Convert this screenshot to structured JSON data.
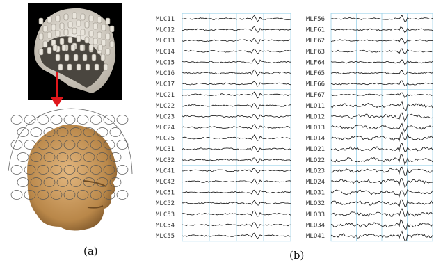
{
  "captions": {
    "a": "(a)",
    "b": "(b)"
  },
  "colors": {
    "grid": "#9dd3ea",
    "trace": "#111111",
    "arrow": "#e0161b",
    "skin": "#c7955c"
  },
  "icons": {
    "sensor_array": "meg-sensor-helmet-icon",
    "head": "head-with-sensor-mesh-icon"
  },
  "left_channels": [
    "MLC11",
    "MLC12",
    "MLC13",
    "MLC14",
    "MLC15",
    "MLC16",
    "MLC17",
    "MLC21",
    "MLC22",
    "MLC23",
    "MLC24",
    "MLC25",
    "MLC31",
    "MLC32",
    "MLC41",
    "MLC42",
    "MLC51",
    "MLC52",
    "MLC53",
    "MLC54",
    "MLC55"
  ],
  "right_channels": [
    "MLF56",
    "MLF61",
    "MLF62",
    "MLF63",
    "MLF64",
    "MLF65",
    "MLF66",
    "MLF67",
    "MLO11",
    "MLO12",
    "MLO13",
    "MLO14",
    "MLO21",
    "MLO22",
    "MLO23",
    "MLO24",
    "MLO31",
    "MLO32",
    "MLO33",
    "MLO34",
    "MLO41"
  ]
}
